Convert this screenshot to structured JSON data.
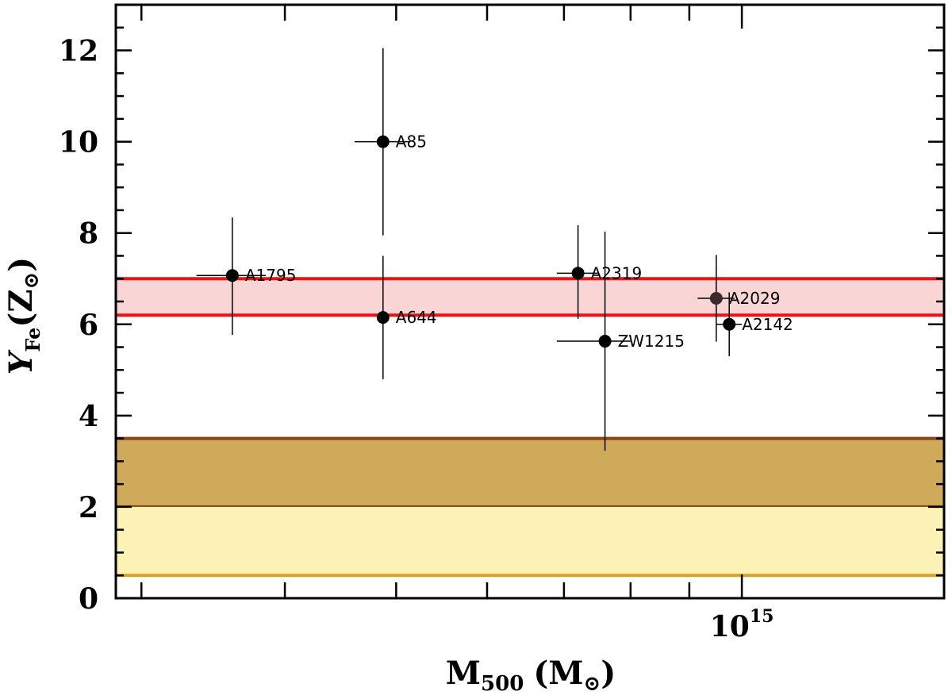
{
  "chart_data": {
    "type": "scatter",
    "title": "",
    "xlabel": {
      "main": "M",
      "sub": "500",
      "unit": "(M",
      "sun": "⊙",
      "close": ")"
    },
    "ylabel": {
      "main": "Y",
      "sub": "Fe",
      "unit": "(Z",
      "sun": "⊙",
      "close": ")"
    },
    "xscale": "log",
    "xlim": [
      285000000000000.0,
      1500000000000000.0
    ],
    "ylim": [
      0,
      13
    ],
    "x_tick_labels": [
      {
        "value": 1000000000000000.0,
        "base": "10",
        "exp": "15"
      }
    ],
    "y_ticks": [
      0,
      2,
      4,
      6,
      8,
      10,
      12
    ],
    "grid": false,
    "points": [
      {
        "name": "A1795",
        "x": 360000000000000.0,
        "y": 7.07,
        "xerr": [
          25000000000000.0,
          25000000000000.0
        ],
        "yerr": [
          1.3,
          1.27
        ]
      },
      {
        "name": "A85",
        "x": 487000000000000.0,
        "y": 10.0,
        "xerr": [
          27000000000000.0,
          27000000000000.0
        ],
        "yerr": [
          2.05,
          2.05
        ]
      },
      {
        "name": "A644",
        "x": 487000000000000.0,
        "y": 6.15,
        "xerr": [
          0.0,
          0.0
        ],
        "yerr": [
          1.35,
          1.35
        ]
      },
      {
        "name": "A2319",
        "x": 720000000000000.0,
        "y": 7.12,
        "xerr": [
          30000000000000.0,
          30000000000000.0
        ],
        "yerr": [
          1.0,
          1.05
        ]
      },
      {
        "name": "ZW1215",
        "x": 760000000000000.0,
        "y": 5.63,
        "xerr": [
          70000000000000.0,
          40000000000000.0
        ],
        "yerr": [
          2.4,
          2.4
        ]
      },
      {
        "name": "A2029",
        "x": 950000000000000.0,
        "y": 6.57,
        "xerr": [
          35000000000000.0,
          35000000000000.0
        ],
        "yerr": [
          0.95,
          0.95
        ],
        "color": "#3a2a2a"
      },
      {
        "name": "A2142",
        "x": 975000000000000.0,
        "y": 6.0,
        "xerr": [
          25000000000000.0,
          25000000000000.0
        ],
        "yerr": [
          0.7,
          0.7
        ]
      }
    ],
    "bands": [
      {
        "y0": 6.2,
        "y1": 7.0,
        "fill": "#f9d5d5",
        "edge": "#ee1111",
        "edges": [
          "bottom",
          "top"
        ]
      },
      {
        "y0": 2.0,
        "y1": 3.5,
        "fill": "#cfaa5a",
        "edge": "#8b4513",
        "edges": [
          "bottom",
          "top"
        ]
      },
      {
        "y0": 0.5,
        "y1": 2.0,
        "fill": "#fdf2b5",
        "edge": "#d4a420",
        "edges": [
          "bottom"
        ]
      }
    ]
  }
}
